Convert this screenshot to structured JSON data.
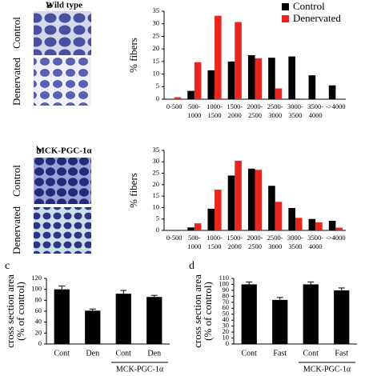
{
  "figure": {
    "images": [
      {
        "title": "Wild type",
        "rows": [
          "Control",
          "Denervated"
        ]
      },
      {
        "title": "MCK-PGC-1α",
        "rows": [
          "Control",
          "Denervated"
        ]
      }
    ]
  },
  "chart_data": [
    {
      "type": "bar",
      "panel": "a",
      "ylabel": "% fibers",
      "categories": [
        [
          "0-500"
        ],
        [
          "500-",
          "1000"
        ],
        [
          "1000-",
          "1500"
        ],
        [
          "1500-",
          "2000"
        ],
        [
          "2000-",
          "2500"
        ],
        [
          "2500-",
          "3000"
        ],
        [
          "3000-",
          "3500"
        ],
        [
          "3500-",
          "4000"
        ],
        [
          "->4000"
        ]
      ],
      "series": [
        {
          "name": "Control",
          "color": "#000000",
          "values": [
            0,
            3.3,
            11.5,
            15,
            17.5,
            16.5,
            17,
            9.5,
            5.5
          ]
        },
        {
          "name": "Denervated",
          "color": "#e8251e",
          "values": [
            0.8,
            14.7,
            33.2,
            30.7,
            16.3,
            4.3,
            0.3,
            0,
            0
          ]
        }
      ],
      "ylim": [
        0,
        35
      ],
      "yticks": [
        0,
        5,
        10,
        15,
        20,
        25,
        30,
        35
      ],
      "legend": "top-right"
    },
    {
      "type": "bar",
      "panel": "b",
      "ylabel": "% fibers",
      "categories": [
        [
          "0-500"
        ],
        [
          "500-",
          "1000"
        ],
        [
          "1000-",
          "1500"
        ],
        [
          "1500-",
          "2000"
        ],
        [
          "2000-",
          "2500"
        ],
        [
          "2500-",
          "3000"
        ],
        [
          "3000-",
          "3500"
        ],
        [
          "3500-",
          "4000"
        ],
        [
          "->4000"
        ]
      ],
      "series": [
        {
          "color": "#000000",
          "values": [
            0,
            1.3,
            9.5,
            24,
            27,
            19.5,
            9.8,
            5,
            4.2
          ]
        },
        {
          "color": "#e8251e",
          "values": [
            0,
            3.1,
            17.8,
            30.5,
            26.5,
            12.5,
            5.5,
            3.5,
            1.2
          ]
        }
      ],
      "ylim": [
        0,
        35
      ],
      "yticks": [
        0,
        5,
        10,
        15,
        20,
        25,
        30,
        35
      ]
    },
    {
      "type": "bar",
      "panel": "c",
      "ylabel": [
        "cross section area",
        "(% of control)"
      ],
      "categories": [
        "Cont",
        "Den",
        "Cont",
        "Den"
      ],
      "values": [
        100,
        61,
        92,
        86
      ],
      "errors": [
        6,
        3,
        6,
        3
      ],
      "color": "#000000",
      "group_label": "MCK-PGC-1α",
      "ylim": [
        0,
        120
      ],
      "yticks": [
        0,
        20,
        40,
        60,
        80,
        100,
        120
      ]
    },
    {
      "type": "bar",
      "panel": "d",
      "ylabel": [
        "cross section area",
        "(% of control)"
      ],
      "categories": [
        "Cont",
        "Fast",
        "Cont",
        "Fast"
      ],
      "values": [
        100,
        74,
        100,
        90
      ],
      "errors": [
        4,
        4,
        4,
        4
      ],
      "color": "#000000",
      "group_label": "MCK-PGC-1α",
      "ylim": [
        0,
        110
      ],
      "yticks": [
        0,
        10,
        20,
        30,
        40,
        50,
        60,
        70,
        80,
        90,
        100,
        110
      ]
    }
  ]
}
